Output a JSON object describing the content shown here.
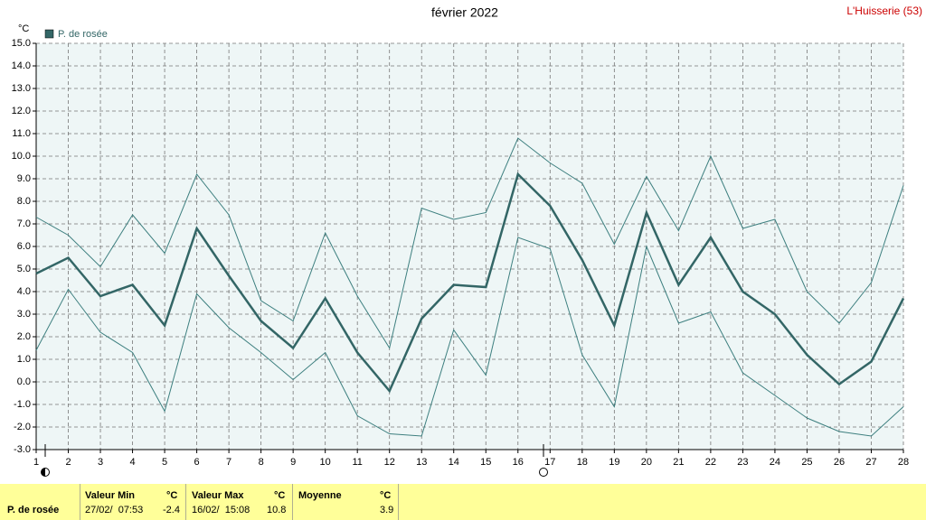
{
  "chart_data": {
    "type": "line",
    "title": "février 2022",
    "station": "L'Huisserie (53)",
    "y_unit": "°C",
    "x": [
      1,
      2,
      3,
      4,
      5,
      6,
      7,
      8,
      9,
      10,
      11,
      12,
      13,
      14,
      15,
      16,
      17,
      18,
      19,
      20,
      21,
      22,
      23,
      24,
      25,
      26,
      27,
      28
    ],
    "xlim": [
      1,
      28
    ],
    "xticks": [
      1,
      2,
      3,
      4,
      5,
      6,
      7,
      8,
      9,
      10,
      11,
      12,
      13,
      14,
      15,
      16,
      17,
      18,
      19,
      20,
      21,
      22,
      23,
      24,
      25,
      26,
      27,
      28
    ],
    "ylim": [
      -3,
      15
    ],
    "yticks": [
      {
        "value": 15,
        "label": "15.0"
      },
      {
        "value": 14,
        "label": "14.0"
      },
      {
        "value": 13,
        "label": "13.0"
      },
      {
        "value": 12,
        "label": "12.0"
      },
      {
        "value": 11,
        "label": "11.0"
      },
      {
        "value": 10,
        "label": "10.0"
      },
      {
        "value": 9,
        "label": "9.0"
      },
      {
        "value": 8,
        "label": "8.0"
      },
      {
        "value": 7,
        "label": "7.0"
      },
      {
        "value": 6,
        "label": "6.0"
      },
      {
        "value": 5,
        "label": "5.0"
      },
      {
        "value": 4,
        "label": "4.0"
      },
      {
        "value": 3,
        "label": "3.0"
      },
      {
        "value": 2,
        "label": "2.0"
      },
      {
        "value": 1,
        "label": "1.0"
      },
      {
        "value": 0,
        "label": "0.0"
      },
      {
        "value": -1,
        "label": "-1.0"
      },
      {
        "value": -2,
        "label": "-2.0"
      },
      {
        "value": -3,
        "label": "-3.0"
      }
    ],
    "grid": true,
    "series": [
      {
        "name": "P. de rosée",
        "color": "#336666",
        "values": [
          4.8,
          5.5,
          3.8,
          4.3,
          2.5,
          6.8,
          4.7,
          2.7,
          1.5,
          3.7,
          1.3,
          -0.4,
          2.8,
          4.3,
          4.2,
          9.2,
          7.8,
          5.4,
          2.5,
          7.5,
          4.3,
          6.4,
          4.0,
          3.0,
          1.2,
          -0.1,
          0.9,
          3.7
        ]
      },
      {
        "color": "#3d7f7f",
        "values": [
          7.3,
          6.5,
          5.1,
          7.4,
          5.7,
          9.2,
          7.4,
          3.6,
          2.7,
          6.6,
          3.8,
          1.5,
          7.7,
          7.2,
          7.5,
          10.8,
          9.7,
          8.8,
          6.1,
          9.1,
          6.7,
          10.0,
          6.8,
          7.2,
          4.0,
          2.6,
          4.4,
          8.7
        ]
      },
      {
        "color": "#3d7f7f",
        "values": [
          1.4,
          4.1,
          2.2,
          1.3,
          -1.3,
          3.9,
          2.4,
          1.3,
          0.1,
          1.3,
          -1.5,
          -2.3,
          -2.4,
          2.3,
          0.3,
          6.4,
          5.9,
          1.2,
          -1.1,
          6.0,
          2.6,
          3.1,
          0.4,
          -0.6,
          -1.6,
          -2.2,
          -2.4,
          -1.1
        ]
      }
    ]
  },
  "table": {
    "headers": [
      "Valeur Min",
      "°C",
      "Valeur Max",
      "°C",
      "Moyenne",
      "°C"
    ],
    "row": {
      "label": "P. de rosée",
      "min_date": "27/02/  07:53",
      "min": "-2.4",
      "max_date": "16/02/  15:08",
      "max": "10.8",
      "mean": "3.9"
    }
  }
}
